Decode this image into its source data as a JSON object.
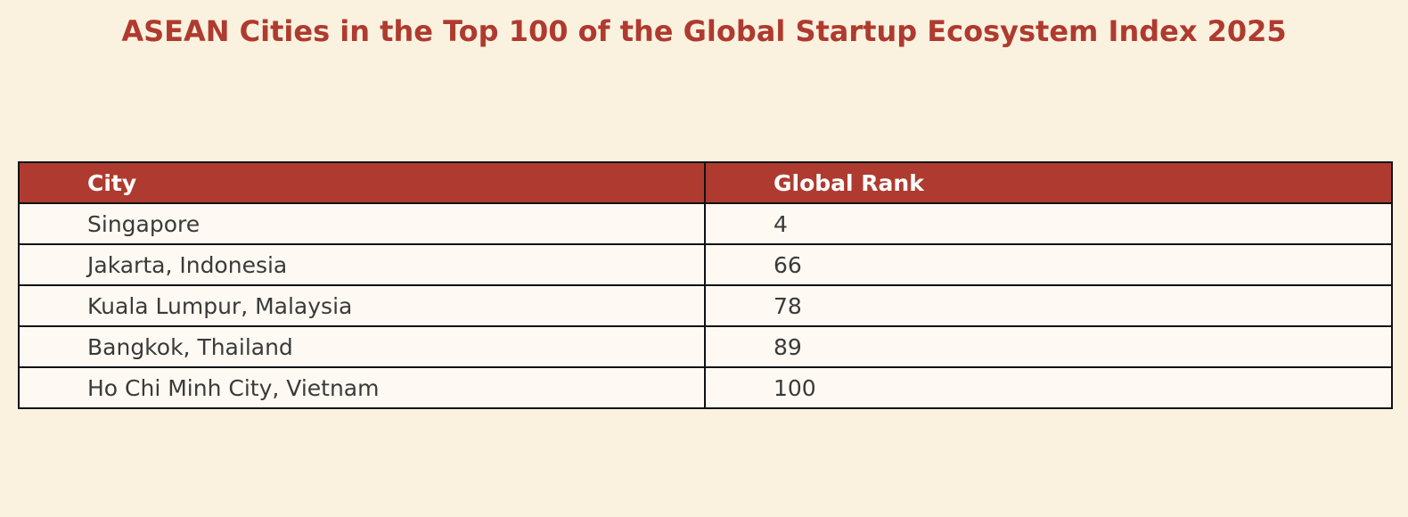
{
  "chart_data": {
    "type": "table",
    "title": "ASEAN Cities in the Top 100 of the Global Startup Ecosystem Index 2025",
    "columns": [
      "City",
      "Global Rank"
    ],
    "rows": [
      [
        "Singapore",
        "4"
      ],
      [
        "Jakarta, Indonesia",
        "66"
      ],
      [
        "Kuala Lumpur, Malaysia",
        "78"
      ],
      [
        "Bangkok, Thailand",
        "89"
      ],
      [
        "Ho Chi Minh City, Vietnam",
        "100"
      ]
    ]
  },
  "colors": {
    "background": "#faf2df",
    "accent": "#af3a2f",
    "cell_background": "#fefaf3",
    "cell_text": "#3a3a3a",
    "border": "#111111"
  }
}
